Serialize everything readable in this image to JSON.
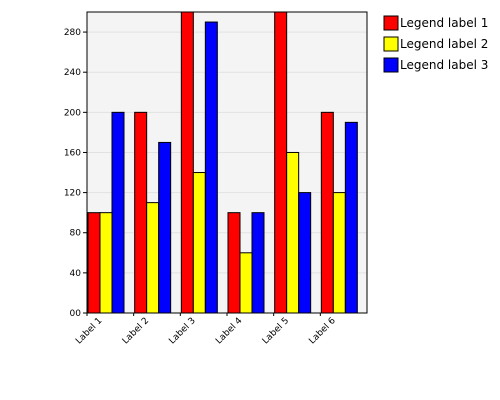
{
  "chart_data": {
    "type": "bar",
    "categories": [
      "Label 1",
      "Label 2",
      "Label 3",
      "Label 4",
      "Label 5",
      "Label 6"
    ],
    "series": [
      {
        "name": "Legend label 1",
        "color": "#ff0000",
        "values": [
          100,
          200,
          300,
          100,
          300,
          200
        ]
      },
      {
        "name": "Legend label 2",
        "color": "#ffff00",
        "values": [
          100,
          110,
          140,
          60,
          160,
          120
        ]
      },
      {
        "name": "Legend label 3",
        "color": "#0000ff",
        "values": [
          200,
          170,
          290,
          100,
          120,
          190
        ]
      }
    ],
    "ylim": [
      0,
      300
    ],
    "yticks": [
      0,
      40,
      80,
      120,
      160,
      200,
      240,
      280
    ],
    "ytick_labels": [
      "00",
      "40",
      "80",
      "120",
      "160",
      "200",
      "240",
      "280"
    ],
    "grid": true,
    "legend_position": "right",
    "plot_background": "#f4f4f4",
    "title": "",
    "xlabel": "",
    "ylabel": ""
  }
}
